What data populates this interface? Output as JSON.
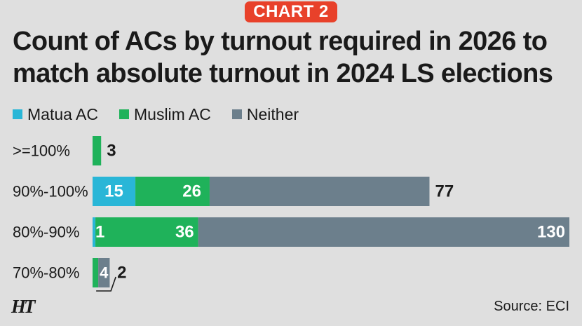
{
  "tag": "CHART 2",
  "footer": {
    "logo": "HT",
    "source": "Source: ECI"
  },
  "colors": {
    "matua": "#29b6d7",
    "muslim": "#1fb25a",
    "neither": "#6c7f8c",
    "background": "#dfdfdf",
    "tag": "#e8412a"
  },
  "chart_data": {
    "type": "bar",
    "orientation": "horizontal",
    "stacked": true,
    "title": "Count of ACs by turnout required in 2026 to match absolute turnout in 2024 LS elections",
    "legend_position": "top-left",
    "grid": false,
    "xlim": [
      0,
      167
    ],
    "categories": [
      ">=100%",
      "90%-100%",
      "80%-90%",
      "70%-80%"
    ],
    "series": [
      {
        "name": "Matua AC",
        "values": [
          0,
          15,
          1,
          0
        ]
      },
      {
        "name": "Muslim AC",
        "values": [
          3,
          26,
          36,
          2
        ]
      },
      {
        "name": "Neither",
        "values": [
          0,
          77,
          130,
          4
        ]
      }
    ],
    "data_labels": [
      [
        "",
        "",
        "3"
      ],
      [
        "15",
        "26",
        "77"
      ],
      [
        "1",
        "36",
        "130"
      ],
      [
        "",
        "2",
        "4"
      ]
    ]
  }
}
